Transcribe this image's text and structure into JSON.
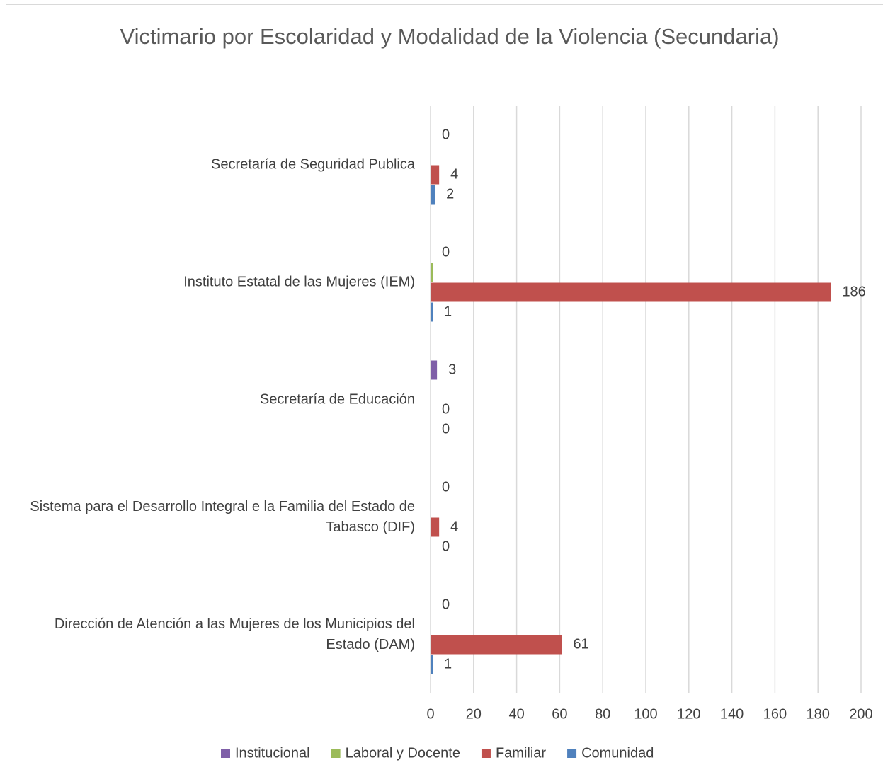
{
  "chart_data": {
    "type": "barh",
    "title": "Victimario por Escolaridad y Modalidad de la Violencia (Secundaria)",
    "categories": [
      "Secretaría de Seguridad Publica",
      "Instituto Estatal de las Mujeres (IEM)",
      "Secretaría de Educación",
      "Sistema para el Desarrollo Integral e la Familia del Estado de Tabasco (DIF)",
      "Dirección de Atención a las Mujeres de los Municipios del Estado (DAM)"
    ],
    "series": [
      {
        "name": "Institucional",
        "color": "#7f5fa8",
        "values": [
          0,
          0,
          3,
          0,
          0
        ]
      },
      {
        "name": "Laboral y Docente",
        "color": "#9bbb59",
        "values": [
          null,
          1,
          null,
          null,
          null
        ],
        "value_labels": [
          null,
          null,
          null,
          null,
          null
        ]
      },
      {
        "name": "Familiar",
        "color": "#c0504d",
        "values": [
          4,
          186,
          0,
          4,
          61
        ]
      },
      {
        "name": "Comunidad",
        "color": "#4f81bd",
        "values": [
          2,
          1,
          0,
          0,
          1
        ]
      }
    ],
    "xlim": [
      0,
      200
    ],
    "xticks": [
      0,
      20,
      40,
      60,
      80,
      100,
      120,
      140,
      160,
      180,
      200
    ],
    "grid": true,
    "legend": "bottom"
  }
}
